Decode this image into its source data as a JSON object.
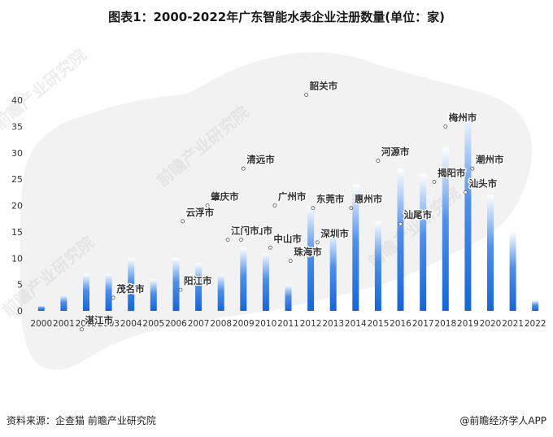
{
  "title": "图表1：2000-2022年广东智能水表企业注册数量(单位：家)",
  "footer": {
    "source": "资料来源：企查猫 前瞻产业研究院",
    "brand": "@前瞻经济学人APP"
  },
  "watermark": {
    "text": "前瞻产业研究院"
  },
  "colors": {
    "bar_bottom": "#1565d8",
    "bar_top": "#ffffff",
    "axis_text": "#333333",
    "map_shadow": "#d9d9d9"
  },
  "chart_data": {
    "type": "bar",
    "categories": [
      "2000",
      "2001",
      "2002",
      "2003",
      "2004",
      "2005",
      "2006",
      "2007",
      "2008",
      "2009",
      "2010",
      "2011",
      "2012",
      "2013",
      "2014",
      "2015",
      "2016",
      "2017",
      "2018",
      "2019",
      "2020",
      "2021",
      "2022"
    ],
    "values": [
      1,
      3,
      7,
      7,
      10,
      6,
      10,
      9,
      7,
      12,
      11,
      5,
      20,
      15,
      24,
      17,
      27,
      26,
      31,
      38,
      22,
      15,
      2
    ],
    "ylim": [
      0,
      40
    ],
    "yticks": [
      0,
      5,
      10,
      15,
      20,
      25,
      30,
      35,
      40
    ],
    "grid": false,
    "background_map_labels": [
      {
        "name": "韶关市",
        "value": 41
      },
      {
        "name": "清远市",
        "value": 27
      },
      {
        "name": "河源市",
        "value": 28.5
      },
      {
        "name": "梅州市",
        "value": 35
      },
      {
        "name": "潮州市",
        "value": 27
      },
      {
        "name": "揭阳市",
        "value": 24.5
      },
      {
        "name": "汕头市",
        "value": 22.5
      },
      {
        "name": "汕尾市",
        "value": 16.5
      },
      {
        "name": "惠州市",
        "value": 19.5
      },
      {
        "name": "东莞市",
        "value": 19.5
      },
      {
        "name": "广州市",
        "value": 20
      },
      {
        "name": "肇庆市",
        "value": 20
      },
      {
        "name": "佛山市",
        "value": 13.5
      },
      {
        "name": "云浮市",
        "value": 17
      },
      {
        "name": "中山市",
        "value": 12
      },
      {
        "name": "深圳市",
        "value": 13
      },
      {
        "name": "珠海市",
        "value": 9.5
      },
      {
        "name": "江门市",
        "value": 13.5
      },
      {
        "name": "阳江市",
        "value": 4
      },
      {
        "name": "茂名市",
        "value": 2.5
      },
      {
        "name": "湛江市",
        "value": -3.5
      }
    ]
  }
}
